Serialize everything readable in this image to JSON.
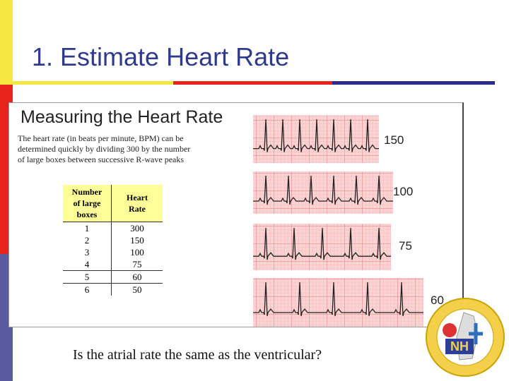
{
  "slide": {
    "title": "1. Estimate Heart Rate",
    "figure": {
      "heading": "Measuring the Heart Rate",
      "description": [
        "The heart rate (in beats per minute, BPM) can be",
        "determined quickly by dividing 300 by the number",
        "of large boxes between successive R-wave peaks"
      ],
      "table": {
        "headers": [
          [
            "Number",
            "of large",
            "boxes"
          ],
          [
            "Heart",
            "Rate"
          ]
        ],
        "rows": [
          [
            "1",
            "300"
          ],
          [
            "2",
            "150"
          ],
          [
            "3",
            "100"
          ],
          [
            "4",
            "75"
          ],
          [
            "5",
            "60"
          ],
          [
            "6",
            "50"
          ]
        ]
      },
      "strip_labels": [
        "150",
        "100",
        "75",
        "60"
      ]
    },
    "question": "Is the atrial rate the same as the ventricular?",
    "logo": "NH"
  }
}
